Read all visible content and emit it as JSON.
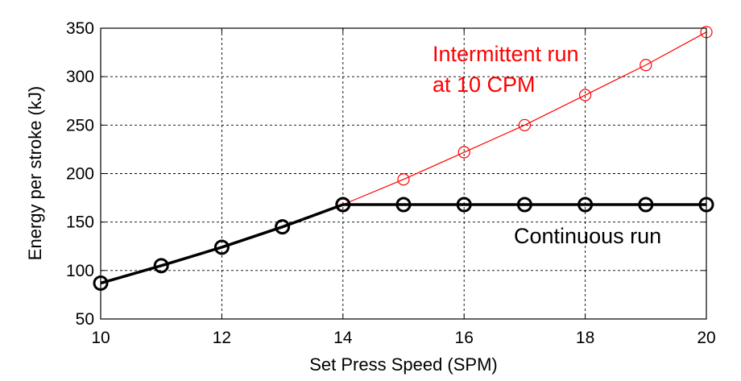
{
  "chart_data": {
    "type": "line",
    "xlabel": "Set Press Speed (SPM)",
    "ylabel": "Energy per stroke (kJ)",
    "xlim": [
      10,
      20
    ],
    "ylim": [
      50,
      350
    ],
    "xticks": [
      10,
      12,
      14,
      16,
      18,
      20
    ],
    "yticks": [
      50,
      100,
      150,
      200,
      250,
      300,
      350
    ],
    "grid": true,
    "series": [
      {
        "name": "Continuous run",
        "color": "#000000",
        "marker": "circle",
        "x": [
          10,
          11,
          12,
          13,
          14,
          15,
          16,
          17,
          18,
          19,
          20
        ],
        "y": [
          87,
          105,
          124,
          145,
          168,
          168,
          168,
          168,
          168,
          168,
          168
        ]
      },
      {
        "name": "Intermittent run at 10 CPM",
        "color": "#ff0000",
        "marker": "circle",
        "x": [
          14,
          15,
          16,
          17,
          18,
          19,
          20
        ],
        "y": [
          168,
          194,
          222,
          250,
          281,
          312,
          346
        ]
      }
    ],
    "annotations": {
      "intermittent_line1": "Intermittent run",
      "intermittent_line2": "at 10 CPM",
      "continuous": "Continuous run"
    }
  }
}
